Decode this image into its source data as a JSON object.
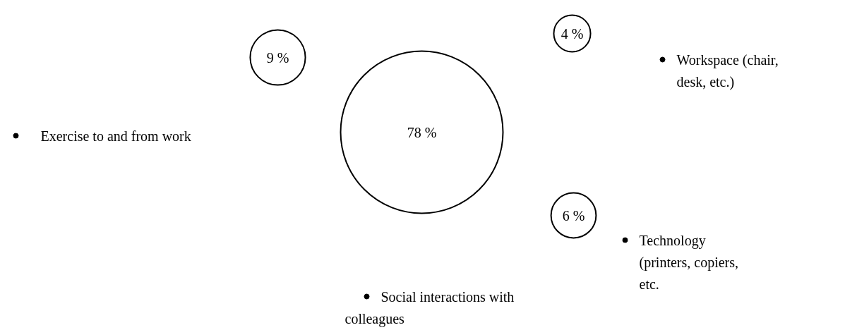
{
  "chart_data": {
    "type": "other",
    "categories": [
      "Social interactions with colleagues",
      "Exercise to and from work",
      "Workspace (chair, desk, etc.)",
      "Technology (printers, copiers, etc."
    ],
    "values": [
      78,
      9,
      4,
      6
    ],
    "value_labels": [
      "78 %",
      "9 %",
      "4 %",
      "6 %"
    ]
  }
}
